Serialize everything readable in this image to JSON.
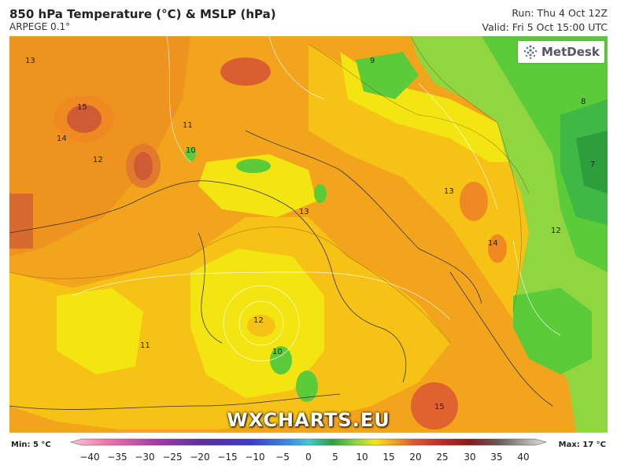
{
  "header": {
    "title": "850 hPa Temperature (°C) & MSLP (hPa)",
    "model": "ARPEGE 0.1°",
    "run": "Run: Thu 4 Oct 12Z",
    "valid": "Valid: Fri 5 Oct 15:00 UTC"
  },
  "branding": {
    "logo": "MetDesk",
    "watermark": "WXCHARTS.EU"
  },
  "legend": {
    "min": "Min: 5 °C",
    "max": "Max: 17 °C",
    "ticks": [
      "−40",
      "−35",
      "−30",
      "−25",
      "−20",
      "−15",
      "−10",
      "−5",
      "0",
      "5",
      "10",
      "15",
      "20",
      "25",
      "30",
      "35",
      "40"
    ]
  },
  "colors": {
    "c9": "#5ccb3a",
    "c10": "#8fd641",
    "c11": "#f3e512",
    "c12": "#f5c215",
    "c13": "#f2a41c",
    "c14": "#ef8a22",
    "c15": "#dc5a34",
    "c8": "#3fb845",
    "c7": "#2e9e3c"
  },
  "map_labels": [
    {
      "text": "13"
    },
    {
      "text": "15"
    },
    {
      "text": "14"
    },
    {
      "text": "12"
    },
    {
      "text": "11"
    },
    {
      "text": "10"
    },
    {
      "text": "9"
    },
    {
      "text": "8"
    },
    {
      "text": "7"
    },
    {
      "text": "12"
    },
    {
      "text": "13"
    },
    {
      "text": "11"
    },
    {
      "text": "10"
    },
    {
      "text": "12"
    },
    {
      "text": "13"
    },
    {
      "text": "14"
    },
    {
      "text": "15"
    }
  ]
}
